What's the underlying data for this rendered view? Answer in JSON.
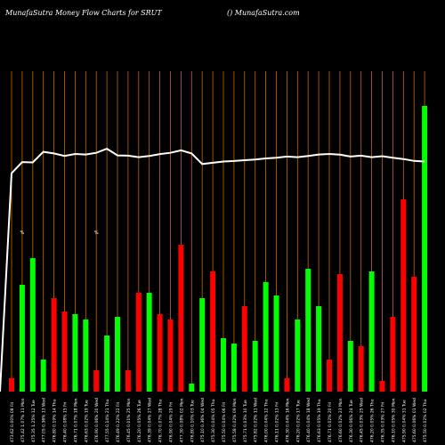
{
  "header": {
    "left": "MunafaSutra  Money Flow  Charts for SRUT",
    "right": "() MunafaSutra.com"
  },
  "chart_data": {
    "type": "bar",
    "title": "MunafaSutra  Money Flow  Charts for SRUT",
    "colors": {
      "up": "#00ff00",
      "down": "#ff0000",
      "price": "#ffffff",
      "grid": "#cc6600",
      "text": "#ffffff"
    },
    "markers": [
      {
        "index": 1,
        "label": "%"
      },
      {
        "index": 8,
        "label": "%"
      }
    ],
    "categories": [
      "473.62 0.00% 08 Fri",
      "475.42 1.07% 11 Mon",
      "475.35 1.25% 12 Tue",
      "477.05 0.36% 13 Wed",
      "476.80 0.19% 14 Thu",
      "476.40 0.08% 15 Fri",
      "476.71 0.07% 18 Mon",
      "476.63 0.02% 19 Tue",
      "476.90 0.06% 20 Wed",
      "477.55 0.14% 21 Thu",
      "476.49 0.22% 22 Fri",
      "476.45 0.01% 25 Mon",
      "476.20 0.05% 26 Tue",
      "476.39 0.04% 27 Wed",
      "476.70 0.07% 28 Thu",
      "476.90 0.04% 29 Fri",
      "477.30 0.08% 02 Mon",
      "476.80 0.10% 03 Tue",
      "475.10 0.36% 04 Wed",
      "475.30 0.04% 05 Thu",
      "475.50 0.04% 06 Fri",
      "475.58 0.02% 09 Mon",
      "475.71 0.03% 10 Tue",
      "475.82 0.02% 11 Wed",
      "476.00 0.04% 12 Thu",
      "476.11 0.02% 13 Fri",
      "476.30 0.04% 16 Mon",
      "476.20 0.02% 17 Tue",
      "476.40 0.04% 18 Wed",
      "476.63 0.05% 19 Thu",
      "476.71 0.02% 20 Fri",
      "476.60 0.02% 23 Mon",
      "476.30 0.06% 24 Tue",
      "476.45 0.03% 25 Wed",
      "476.20 0.05% 26 Thu",
      "476.35 0.03% 27 Fri",
      "476.10 0.05% 30 Mon",
      "475.90 0.04% 31 Tue",
      "475.60 0.06% 01 Wed",
      "475.50 0.02% 02 Thu"
    ],
    "flows": [
      {
        "value": 5,
        "dir": "down"
      },
      {
        "value": 40,
        "dir": "up"
      },
      {
        "value": 50,
        "dir": "up"
      },
      {
        "value": 12,
        "dir": "up"
      },
      {
        "value": 35,
        "dir": "down"
      },
      {
        "value": 30,
        "dir": "down"
      },
      {
        "value": 29,
        "dir": "up"
      },
      {
        "value": 27,
        "dir": "up"
      },
      {
        "value": 8,
        "dir": "down"
      },
      {
        "value": 21,
        "dir": "up"
      },
      {
        "value": 28,
        "dir": "up"
      },
      {
        "value": 8,
        "dir": "down"
      },
      {
        "value": 37,
        "dir": "down"
      },
      {
        "value": 37,
        "dir": "up"
      },
      {
        "value": 29,
        "dir": "down"
      },
      {
        "value": 27,
        "dir": "down"
      },
      {
        "value": 55,
        "dir": "down"
      },
      {
        "value": 3,
        "dir": "up"
      },
      {
        "value": 35,
        "dir": "up"
      },
      {
        "value": 45,
        "dir": "down"
      },
      {
        "value": 20,
        "dir": "up"
      },
      {
        "value": 18,
        "dir": "up"
      },
      {
        "value": 32,
        "dir": "down"
      },
      {
        "value": 19,
        "dir": "up"
      },
      {
        "value": 41,
        "dir": "up"
      },
      {
        "value": 36,
        "dir": "up"
      },
      {
        "value": 5,
        "dir": "down"
      },
      {
        "value": 27,
        "dir": "up"
      },
      {
        "value": 46,
        "dir": "up"
      },
      {
        "value": 32,
        "dir": "up"
      },
      {
        "value": 12,
        "dir": "down"
      },
      {
        "value": 44,
        "dir": "down"
      },
      {
        "value": 19,
        "dir": "up"
      },
      {
        "value": 17,
        "dir": "down"
      },
      {
        "value": 45,
        "dir": "up"
      },
      {
        "value": 4,
        "dir": "down"
      },
      {
        "value": 28,
        "dir": "down"
      },
      {
        "value": 72,
        "dir": "down"
      },
      {
        "value": 43,
        "dir": "down"
      },
      {
        "value": 107,
        "dir": "up"
      }
    ],
    "price": [
      473.62,
      475.42,
      475.35,
      477.05,
      476.8,
      476.4,
      476.71,
      476.63,
      476.9,
      477.55,
      476.49,
      476.45,
      476.2,
      476.39,
      476.7,
      476.9,
      477.3,
      476.8,
      475.1,
      475.3,
      475.5,
      475.58,
      475.71,
      475.82,
      476.0,
      476.11,
      476.3,
      476.2,
      476.4,
      476.63,
      476.71,
      476.6,
      476.3,
      476.45,
      476.2,
      476.35,
      476.1,
      475.9,
      475.6,
      475.5
    ]
  }
}
